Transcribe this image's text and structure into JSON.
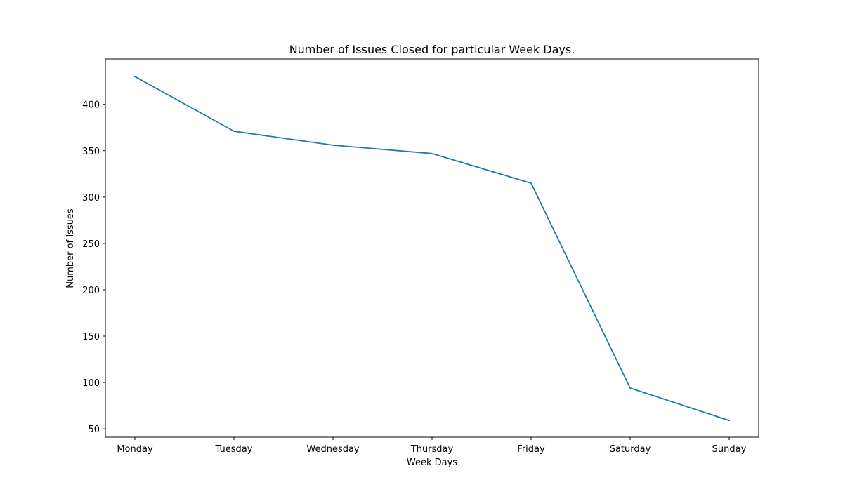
{
  "chart_data": {
    "type": "line",
    "title": "Number of Issues Closed for particular Week Days.",
    "xlabel": "Week Days",
    "ylabel": "Number of Issues",
    "categories": [
      "Monday",
      "Tuesday",
      "Wednesday",
      "Thursday",
      "Friday",
      "Saturday",
      "Sunday"
    ],
    "series": [
      {
        "values": [
          430,
          371,
          356,
          347,
          315,
          94,
          59
        ],
        "color": "#1f77b4"
      }
    ],
    "ylim": [
      41,
      449
    ],
    "yticks": [
      50,
      100,
      150,
      200,
      250,
      300,
      350,
      400
    ],
    "grid": false,
    "legend": "none"
  }
}
